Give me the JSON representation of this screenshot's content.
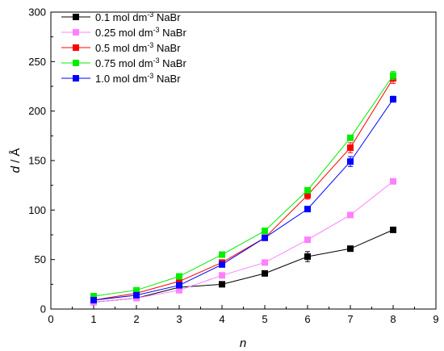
{
  "chart_data": {
    "type": "line",
    "xlabel_var": "n",
    "ylabel_var": "d",
    "ylabel_unit": " / Å",
    "xlim": [
      0,
      9
    ],
    "ylim": [
      0,
      300
    ],
    "x_ticks": [
      0,
      1,
      2,
      3,
      4,
      5,
      6,
      7,
      8,
      9
    ],
    "y_ticks": [
      0,
      50,
      100,
      150,
      200,
      250,
      300
    ],
    "legend_position": "top-left",
    "grid": false,
    "x": [
      1,
      2,
      3,
      4,
      5,
      6,
      7,
      8
    ],
    "series": [
      {
        "name_prefix": "0.1 mol dm",
        "name_sup": "-3",
        "name_suffix": " NaBr",
        "color": "#000000",
        "values": [
          7,
          11,
          22,
          25,
          36,
          53,
          61,
          80
        ],
        "errors": [
          0.5,
          0.5,
          0.8,
          0.8,
          1,
          5,
          1,
          1
        ]
      },
      {
        "name_prefix": "0.25 mol dm",
        "name_sup": "-3",
        "name_suffix": " NaBr",
        "color": "#ff80ff",
        "values": [
          7,
          11,
          19,
          34,
          47,
          70,
          95,
          129
        ],
        "errors": [
          0.5,
          0.5,
          0.8,
          0.8,
          1,
          1,
          1,
          1.5
        ]
      },
      {
        "name_prefix": "0.5 mol dm",
        "name_sup": "-3",
        "name_suffix": " NaBr",
        "color": "#ff0000",
        "values": [
          9,
          16,
          28,
          47,
          72,
          115,
          163,
          233
        ],
        "errors": [
          0.5,
          0.8,
          1,
          1,
          1.5,
          4,
          5,
          5
        ]
      },
      {
        "name_prefix": "0.75 mol dm",
        "name_sup": "-3",
        "name_suffix": " NaBr",
        "color": "#00ee00",
        "values": [
          13,
          19,
          33,
          55,
          79,
          120,
          173,
          236
        ],
        "errors": [
          0.5,
          0.8,
          1,
          1,
          1.5,
          2,
          2,
          4
        ]
      },
      {
        "name_prefix": "1.0 mol dm",
        "name_sup": "-3",
        "name_suffix": " NaBr",
        "color": "#0000ff",
        "values": [
          9,
          14,
          24,
          45,
          72,
          101,
          149,
          212
        ],
        "errors": [
          0.5,
          0.8,
          1,
          1,
          1.5,
          2,
          5,
          3
        ]
      }
    ]
  }
}
